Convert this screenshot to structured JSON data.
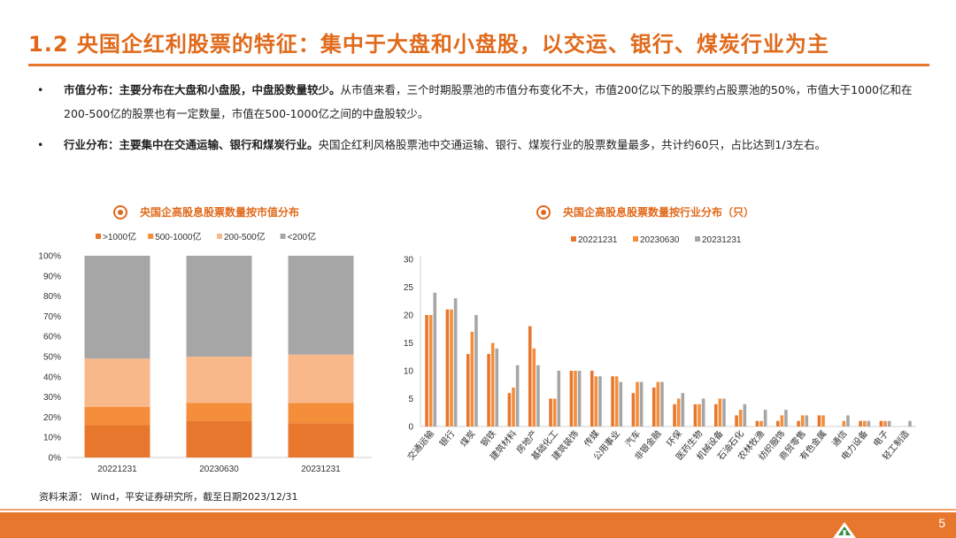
{
  "header": {
    "title": "1.2 央国企红利股票的特征：集中于大盘和小盘股，以交运、银行、煤炭行业为主"
  },
  "bullets": [
    {
      "lead": "市值分布：主要分布在大盘和小盘股，中盘股数量较少。",
      "text": "从市值来看，三个时期股票池的市值分布变化不大，市值200亿以下的股票约占股票池的50%，市值大于1000亿和在200-500亿的股票也有一定数量，市值在500-1000亿之间的中盘股较少。"
    },
    {
      "lead": "行业分布：主要集中在交通运输、银行和煤炭行业。",
      "text": "央国企红利风格股票池中交通运输、银行、煤炭行业的股票数量最多，共计约60只，占比达到1/3左右。"
    }
  ],
  "source": "资料来源： Wind，平安证券研究所，截至日期2023/12/31",
  "page_number": "5",
  "colors": {
    "accent": "#E8772E",
    "title": "#E06A1B",
    "s1": "#E8772E",
    "s2": "#F58E3A",
    "s3": "#F9B88A",
    "s4": "#A6A6A6"
  },
  "chart_data": [
    {
      "type": "bar",
      "stacked": true,
      "title": "央国企高股息股票数量按市值分布",
      "categories": [
        "20221231",
        "20230630",
        "20231231"
      ],
      "series": [
        {
          "name": ">1000亿",
          "values": [
            16,
            18,
            17
          ]
        },
        {
          "name": "500-1000亿",
          "values": [
            9,
            9,
            10
          ]
        },
        {
          "name": "200-500亿",
          "values": [
            24,
            23,
            24
          ]
        },
        {
          "name": "<200亿",
          "values": [
            51,
            50,
            49
          ]
        }
      ],
      "ylim": [
        0,
        100
      ],
      "yticks": [
        "0%",
        "10%",
        "20%",
        "30%",
        "40%",
        "50%",
        "60%",
        "70%",
        "80%",
        "90%",
        "100%"
      ],
      "legend_position": "top"
    },
    {
      "type": "bar",
      "title": "央国企高股息股票数量按行业分布（只）",
      "categories": [
        "交通运输",
        "银行",
        "煤炭",
        "钢铁",
        "建筑材料",
        "房地产",
        "基础化工",
        "建筑装饰",
        "传媒",
        "公用事业",
        "汽车",
        "非银金融",
        "环保",
        "医药生物",
        "机械设备",
        "石油石化",
        "农林牧渔",
        "纺织服饰",
        "商贸零售",
        "有色金属",
        "通信",
        "电力设备",
        "电子",
        "轻工制造"
      ],
      "series": [
        {
          "name": "20221231",
          "values": [
            20,
            21,
            13,
            13,
            6,
            18,
            5,
            10,
            10,
            9,
            6,
            7,
            4,
            4,
            4,
            2,
            1,
            1,
            1,
            2,
            0,
            1,
            1,
            0
          ]
        },
        {
          "name": "20230630",
          "values": [
            20,
            21,
            17,
            15,
            7,
            14,
            5,
            10,
            9,
            9,
            8,
            8,
            5,
            4,
            5,
            3,
            1,
            2,
            2,
            2,
            1,
            1,
            1,
            0
          ]
        },
        {
          "name": "20231231",
          "values": [
            24,
            23,
            20,
            14,
            11,
            11,
            10,
            10,
            9,
            8,
            8,
            8,
            6,
            5,
            5,
            4,
            3,
            3,
            2,
            0,
            2,
            1,
            1,
            1
          ]
        }
      ],
      "ylim": [
        0,
        30
      ],
      "yticks": [
        "0",
        "5",
        "10",
        "15",
        "20",
        "25",
        "30"
      ],
      "legend_position": "top"
    }
  ]
}
